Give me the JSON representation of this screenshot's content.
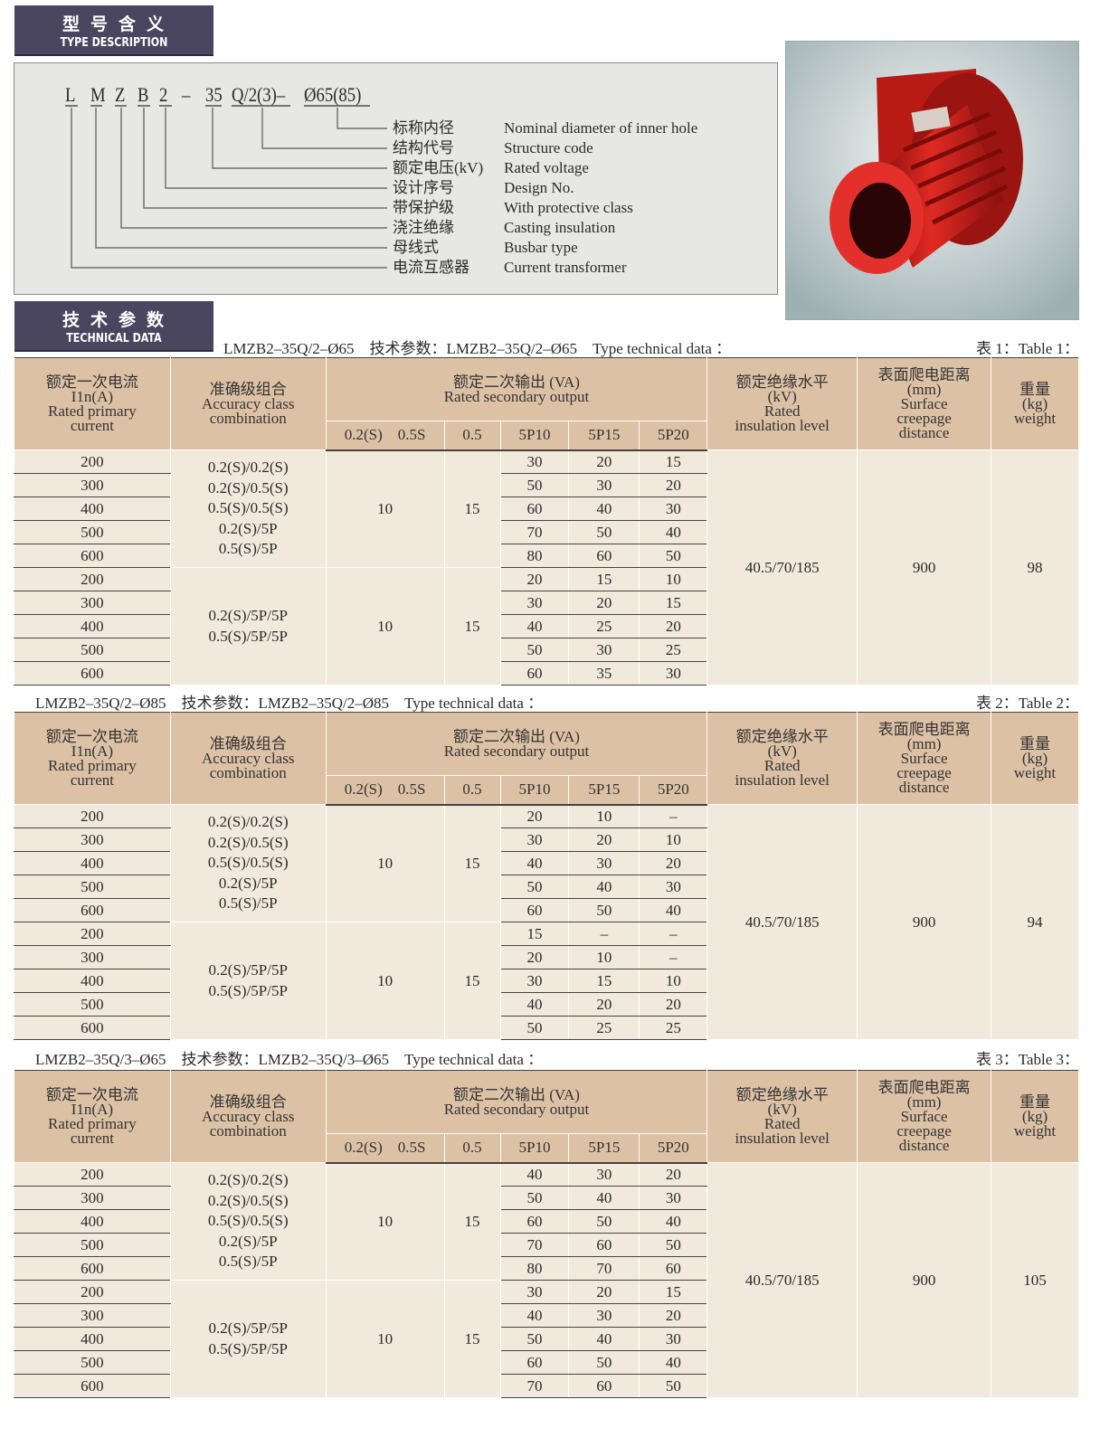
{
  "type_section": {
    "title_cn": "型号含义",
    "title_en": "TYPE DESCRIPTION",
    "code_parts": [
      "L",
      "M",
      "Z",
      "B",
      "2",
      "–",
      "35",
      "Q/2(3)–",
      "Ø65(85)"
    ],
    "items": [
      {
        "cn": "标称内径",
        "en": "Nominal diameter of inner hole"
      },
      {
        "cn": "结构代号",
        "en": "Structure code"
      },
      {
        "cn": "额定电压(kV)",
        "en": "Rated voltage"
      },
      {
        "cn": "设计序号",
        "en": "Design No."
      },
      {
        "cn": "带保护级",
        "en": "With protective class"
      },
      {
        "cn": "浇注绝缘",
        "en": "Casting insulation"
      },
      {
        "cn": "母线式",
        "en": "Busbar type"
      },
      {
        "cn": "电流互感器",
        "en": "Current transformer"
      }
    ]
  },
  "tech_section": {
    "title_cn": "技术参数",
    "title_en": "TECHNICAL DATA"
  },
  "colors": {
    "label_bg": "#4a4660",
    "header_bg": "#dcc1a5",
    "body_bg": "#f1e9dc",
    "product_red": "#d0201c"
  },
  "headers": {
    "current": [
      "额定一次电流",
      "I1n(A)",
      "Rated primary",
      "current"
    ],
    "accuracy": [
      "准确级组合",
      "Accuracy class",
      "combination"
    ],
    "output": [
      "额定二次输出 (VA)",
      "Rated secondary output"
    ],
    "output_sub": [
      "0.2(S)　0.5S",
      "0.5",
      "5P10",
      "5P15",
      "5P20"
    ],
    "insulation": [
      "额定绝缘水平",
      "(kV)",
      "Rated",
      "insulation level"
    ],
    "creepage": [
      "表面爬电距离",
      "(mm)",
      "Surface",
      "creepage",
      "distance"
    ],
    "weight": [
      "重量",
      "(kg)",
      "weight"
    ]
  },
  "tables": [
    {
      "caption": "LMZB2–35Q/2–Ø65　技术参数：LMZB2–35Q/2–Ø65　Type technical data ：",
      "table_no": "表 1：Table 1：",
      "insulation": "40.5/70/185",
      "creepage": "900",
      "weight": "98",
      "groups": [
        {
          "accuracy": [
            "0.2(S)/0.2(S)",
            "0.2(S)/0.5(S)",
            "0.5(S)/0.5(S)",
            "0.2(S)/5P",
            "0.5(S)/5P"
          ],
          "v02s": "10",
          "v05": "15",
          "rows": [
            [
              "200",
              "30",
              "20",
              "15"
            ],
            [
              "300",
              "50",
              "30",
              "20"
            ],
            [
              "400",
              "60",
              "40",
              "30"
            ],
            [
              "500",
              "70",
              "50",
              "40"
            ],
            [
              "600",
              "80",
              "60",
              "50"
            ]
          ]
        },
        {
          "accuracy": [
            "0.2(S)/5P/5P",
            "0.5(S)/5P/5P"
          ],
          "v02s": "10",
          "v05": "15",
          "rows": [
            [
              "200",
              "20",
              "15",
              "10"
            ],
            [
              "300",
              "30",
              "20",
              "15"
            ],
            [
              "400",
              "40",
              "25",
              "20"
            ],
            [
              "500",
              "50",
              "30",
              "25"
            ],
            [
              "600",
              "60",
              "35",
              "30"
            ]
          ]
        }
      ]
    },
    {
      "caption": "LMZB2–35Q/2–Ø85　技术参数：LMZB2–35Q/2–Ø85　Type technical data ：",
      "table_no": "表 2：Table 2：",
      "insulation": "40.5/70/185",
      "creepage": "900",
      "weight": "94",
      "groups": [
        {
          "accuracy": [
            "0.2(S)/0.2(S)",
            "0.2(S)/0.5(S)",
            "0.5(S)/0.5(S)",
            "0.2(S)/5P",
            "0.5(S)/5P"
          ],
          "v02s": "10",
          "v05": "15",
          "rows": [
            [
              "200",
              "20",
              "10",
              "–"
            ],
            [
              "300",
              "30",
              "20",
              "10"
            ],
            [
              "400",
              "40",
              "30",
              "20"
            ],
            [
              "500",
              "50",
              "40",
              "30"
            ],
            [
              "600",
              "60",
              "50",
              "40"
            ]
          ]
        },
        {
          "accuracy": [
            "0.2(S)/5P/5P",
            "0.5(S)/5P/5P"
          ],
          "v02s": "10",
          "v05": "15",
          "rows": [
            [
              "200",
              "15",
              "–",
              "–"
            ],
            [
              "300",
              "20",
              "10",
              "–"
            ],
            [
              "400",
              "30",
              "15",
              "10"
            ],
            [
              "500",
              "40",
              "20",
              "20"
            ],
            [
              "600",
              "50",
              "25",
              "25"
            ]
          ]
        }
      ]
    },
    {
      "caption": "LMZB2–35Q/3–Ø65　技术参数：LMZB2–35Q/3–Ø65　Type technical data ：",
      "table_no": "表 3：Table 3：",
      "insulation": "40.5/70/185",
      "creepage": "900",
      "weight": "105",
      "groups": [
        {
          "accuracy": [
            "0.2(S)/0.2(S)",
            "0.2(S)/0.5(S)",
            "0.5(S)/0.5(S)",
            "0.2(S)/5P",
            "0.5(S)/5P"
          ],
          "v02s": "10",
          "v05": "15",
          "rows": [
            [
              "200",
              "40",
              "30",
              "20"
            ],
            [
              "300",
              "50",
              "40",
              "30"
            ],
            [
              "400",
              "60",
              "50",
              "40"
            ],
            [
              "500",
              "70",
              "60",
              "50"
            ],
            [
              "600",
              "80",
              "70",
              "60"
            ]
          ]
        },
        {
          "accuracy": [
            "0.2(S)/5P/5P",
            "0.5(S)/5P/5P"
          ],
          "v02s": "10",
          "v05": "15",
          "rows": [
            [
              "200",
              "30",
              "20",
              "15"
            ],
            [
              "300",
              "40",
              "30",
              "20"
            ],
            [
              "400",
              "50",
              "40",
              "30"
            ],
            [
              "500",
              "60",
              "50",
              "40"
            ],
            [
              "600",
              "70",
              "60",
              "50"
            ]
          ]
        }
      ]
    }
  ]
}
